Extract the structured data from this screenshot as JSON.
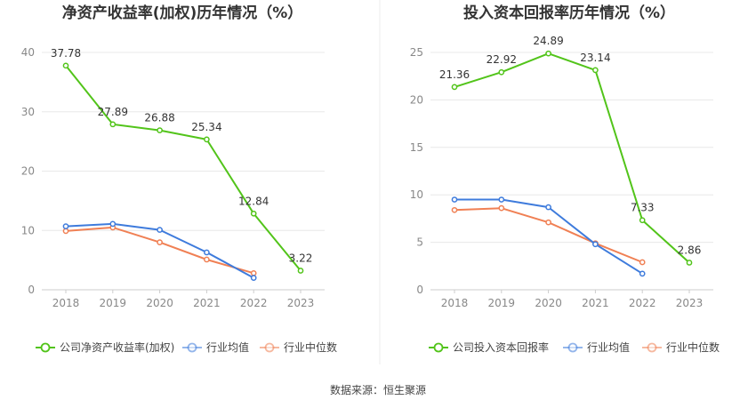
{
  "source_label": "数据来源：恒生聚源",
  "chart_data": [
    {
      "type": "line",
      "title": "净资产收益率(加权)历年情况（%）",
      "xlabel": "",
      "ylabel": "",
      "categories": [
        "2018",
        "2019",
        "2020",
        "2021",
        "2022",
        "2023"
      ],
      "ylim": [
        0,
        40
      ],
      "yticks": [
        0,
        10,
        20,
        30,
        40
      ],
      "grid": true,
      "legend_position": "bottom",
      "series": [
        {
          "name": "公司净资产收益率(加权)",
          "color": "#52c41a",
          "labeled": true,
          "values": [
            37.78,
            27.89,
            26.88,
            25.34,
            12.84,
            3.22
          ]
        },
        {
          "name": "行业均值",
          "color": "#3e7bdc",
          "labeled": false,
          "values": [
            10.7,
            11.1,
            10.1,
            6.3,
            2.0,
            null
          ]
        },
        {
          "name": "行业中位数",
          "color": "#f08054",
          "labeled": false,
          "values": [
            9.9,
            10.5,
            8.0,
            5.1,
            2.8,
            null
          ]
        }
      ]
    },
    {
      "type": "line",
      "title": "投入资本回报率历年情况（%）",
      "xlabel": "",
      "ylabel": "",
      "categories": [
        "2018",
        "2019",
        "2020",
        "2021",
        "2022",
        "2023"
      ],
      "ylim": [
        0,
        25
      ],
      "yticks": [
        0,
        5,
        10,
        15,
        20,
        25
      ],
      "grid": true,
      "legend_position": "bottom",
      "series": [
        {
          "name": "公司投入资本回报率",
          "color": "#52c41a",
          "labeled": true,
          "values": [
            21.36,
            22.92,
            24.89,
            23.14,
            7.33,
            2.86
          ]
        },
        {
          "name": "行业均值",
          "color": "#3e7bdc",
          "labeled": false,
          "values": [
            9.5,
            9.5,
            8.7,
            4.8,
            1.7,
            null
          ]
        },
        {
          "name": "行业中位数",
          "color": "#f08054",
          "labeled": false,
          "values": [
            8.4,
            8.6,
            7.1,
            4.9,
            2.9,
            null
          ]
        }
      ]
    }
  ]
}
